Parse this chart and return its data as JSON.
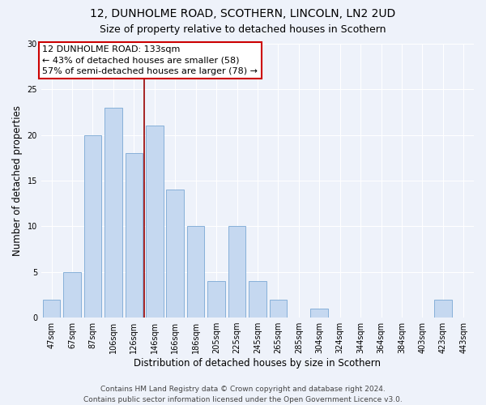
{
  "title1": "12, DUNHOLME ROAD, SCOTHERN, LINCOLN, LN2 2UD",
  "title2": "Size of property relative to detached houses in Scothern",
  "xlabel": "Distribution of detached houses by size in Scothern",
  "ylabel": "Number of detached properties",
  "categories": [
    "47sqm",
    "67sqm",
    "87sqm",
    "106sqm",
    "126sqm",
    "146sqm",
    "166sqm",
    "186sqm",
    "205sqm",
    "225sqm",
    "245sqm",
    "265sqm",
    "285sqm",
    "304sqm",
    "324sqm",
    "344sqm",
    "364sqm",
    "384sqm",
    "403sqm",
    "423sqm",
    "443sqm"
  ],
  "values": [
    2,
    5,
    20,
    23,
    18,
    21,
    14,
    10,
    4,
    10,
    4,
    2,
    0,
    1,
    0,
    0,
    0,
    0,
    0,
    2,
    0
  ],
  "bar_color": "#c5d8f0",
  "bar_edge_color": "#7aa8d4",
  "background_color": "#eef2fa",
  "grid_color": "#ffffff",
  "vline_x_index": 4.5,
  "vline_color": "#990000",
  "annotation_text": "12 DUNHOLME ROAD: 133sqm\n← 43% of detached houses are smaller (58)\n57% of semi-detached houses are larger (78) →",
  "annotation_box_facecolor": "#ffffff",
  "annotation_box_edgecolor": "#cc0000",
  "ylim": [
    0,
    30
  ],
  "yticks": [
    0,
    5,
    10,
    15,
    20,
    25,
    30
  ],
  "footer": "Contains HM Land Registry data © Crown copyright and database right 2024.\nContains public sector information licensed under the Open Government Licence v3.0.",
  "title1_fontsize": 10,
  "title2_fontsize": 9,
  "xlabel_fontsize": 8.5,
  "ylabel_fontsize": 8.5,
  "tick_fontsize": 7,
  "annotation_fontsize": 8,
  "footer_fontsize": 6.5
}
